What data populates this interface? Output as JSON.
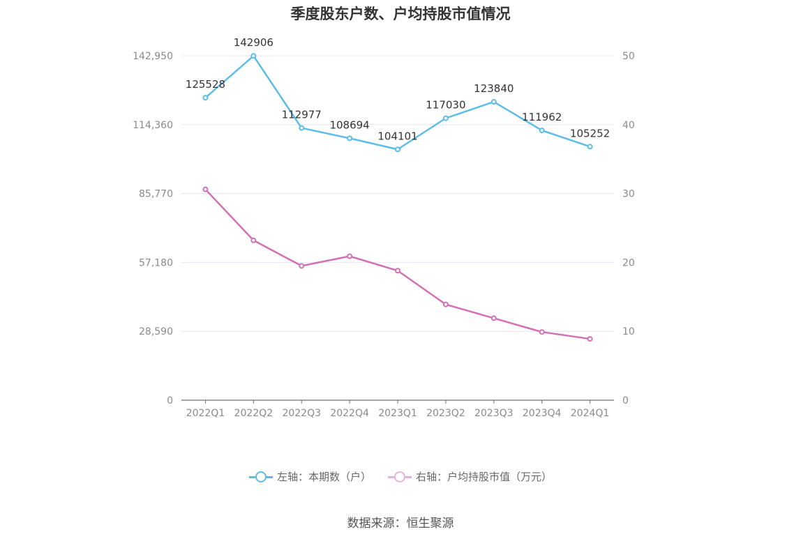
{
  "chart_data": {
    "type": "line",
    "title": "季度股东户数、户均持股市值情况",
    "categories": [
      "2022Q1",
      "2022Q2",
      "2022Q3",
      "2022Q4",
      "2023Q1",
      "2023Q2",
      "2023Q3",
      "2023Q4",
      "2024Q1"
    ],
    "left_axis": {
      "ticks": [
        "0",
        "28,590",
        "57,180",
        "85,770",
        "114,360",
        "142,950"
      ],
      "ylim": [
        0,
        142950
      ]
    },
    "right_axis": {
      "ticks": [
        "0",
        "10",
        "20",
        "30",
        "40",
        "50"
      ],
      "ylim": [
        0,
        50
      ]
    },
    "series": [
      {
        "name": "左轴：本期数（户）",
        "axis": "left",
        "color": "#5bbdea",
        "values": [
          125528,
          142906,
          112977,
          108694,
          104101,
          117030,
          123840,
          111962,
          105252
        ],
        "labels": [
          "125528",
          "142906",
          "112977",
          "108694",
          "104101",
          "117030",
          "123840",
          "111962",
          "105252"
        ]
      },
      {
        "name": "右轴：户均持股市值（万元）",
        "axis": "right",
        "color": "#d46fb5",
        "legend_color": "#e8b3d8",
        "values": [
          30.6,
          23.2,
          19.5,
          20.9,
          18.8,
          13.9,
          11.9,
          9.9,
          8.9
        ]
      }
    ],
    "grid": true,
    "legend_position": "bottom"
  },
  "source": "数据来源：恒生聚源"
}
